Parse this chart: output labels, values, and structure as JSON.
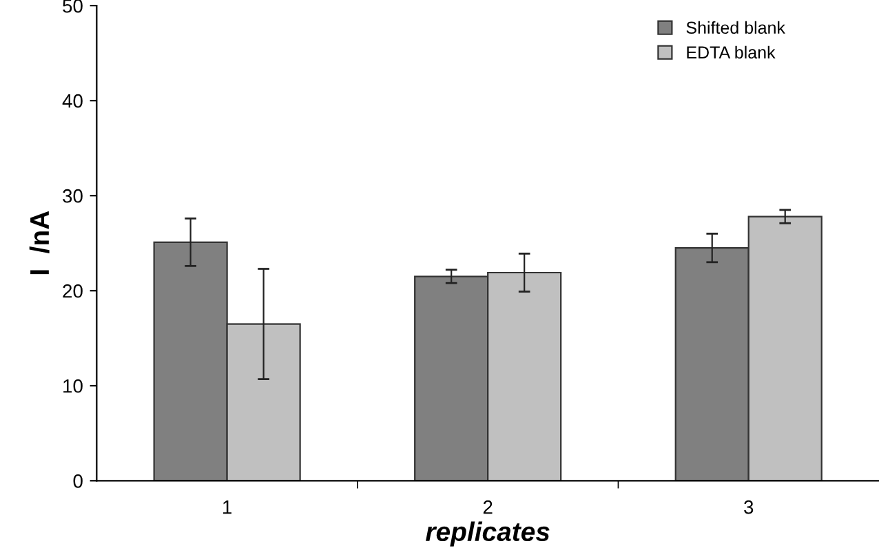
{
  "chart_data": {
    "type": "bar",
    "xlabel": "replicates",
    "ylabel": "I  /nA",
    "categories": [
      "1",
      "2",
      "3"
    ],
    "series": [
      {
        "name": "Shifted blank",
        "color": "#808080",
        "values": [
          25.1,
          21.5,
          24.5
        ],
        "errors": [
          2.5,
          0.7,
          1.5
        ]
      },
      {
        "name": "EDTA blank",
        "color": "#c0c0c0",
        "values": [
          16.5,
          21.9,
          27.8
        ],
        "errors": [
          5.8,
          2.0,
          0.7
        ]
      }
    ],
    "ylim": [
      0,
      50
    ],
    "yticks": [
      0,
      10,
      20,
      30,
      40,
      50
    ],
    "legend": "top right",
    "grid": false
  }
}
